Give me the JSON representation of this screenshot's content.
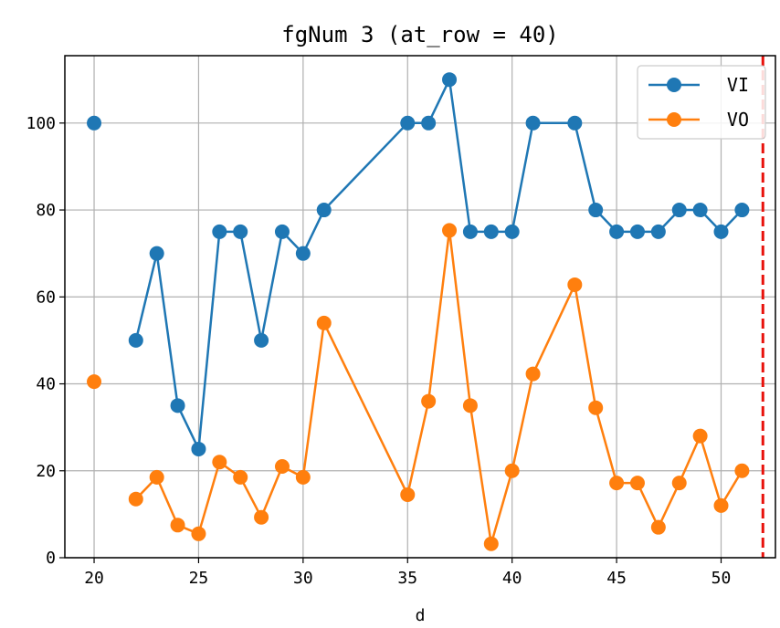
{
  "chart_data": {
    "type": "line",
    "title": "fgNum 3 (at_row = 40)",
    "xlabel": "d",
    "ylabel": "",
    "xlim": [
      18.6,
      52.6
    ],
    "ylim": [
      0,
      115.5
    ],
    "xticks": [
      20,
      25,
      30,
      35,
      40,
      45,
      50
    ],
    "yticks": [
      0,
      20,
      40,
      60,
      80,
      100
    ],
    "grid": true,
    "legend_position": "top-right",
    "vline": {
      "x": 52,
      "color": "#e8120c",
      "style": "dashed"
    },
    "series": [
      {
        "name": "VI",
        "color": "#1f77b4",
        "marker": "circle",
        "x": [
          20,
          22,
          23,
          24,
          25,
          26,
          27,
          28,
          29,
          30,
          31,
          35,
          36,
          37,
          38,
          39,
          40,
          41,
          43,
          44,
          45,
          46,
          47,
          48,
          49,
          50,
          51
        ],
        "values": [
          100,
          50,
          70,
          35,
          25,
          75,
          75,
          50,
          75,
          70,
          80,
          100,
          100,
          110,
          75,
          75,
          75,
          100,
          100,
          80,
          75,
          75,
          75,
          80,
          80,
          75,
          80
        ],
        "breaks_after": [
          0
        ]
      },
      {
        "name": "VO",
        "color": "#ff7f0e",
        "marker": "circle",
        "x": [
          20,
          22,
          23,
          24,
          25,
          26,
          27,
          28,
          29,
          30,
          31,
          35,
          36,
          37,
          38,
          39,
          40,
          41,
          43,
          44,
          45,
          46,
          47,
          48,
          49,
          50,
          51
        ],
        "values": [
          40.5,
          13.5,
          18.5,
          7.5,
          5.5,
          22,
          18.5,
          9.3,
          21,
          18.5,
          54,
          14.5,
          36,
          75.3,
          35,
          3.2,
          20,
          42.3,
          62.8,
          34.5,
          17.2,
          17.2,
          7,
          17.2,
          28,
          12,
          20
        ],
        "breaks_after": [
          0
        ]
      }
    ]
  }
}
